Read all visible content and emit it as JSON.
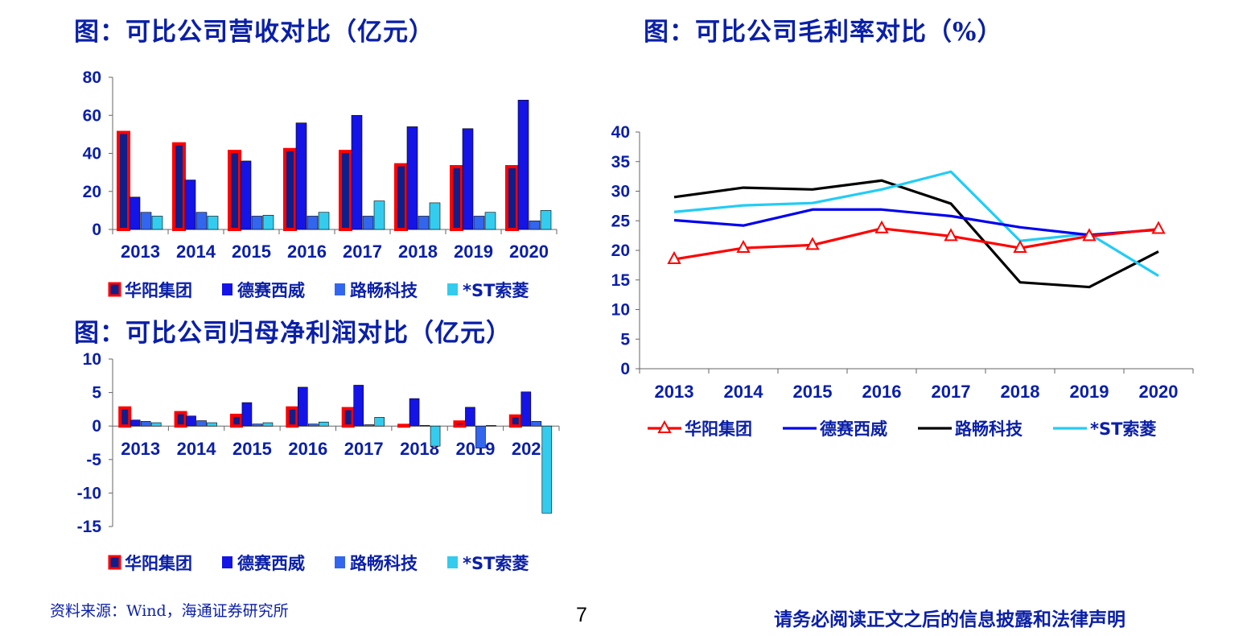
{
  "titles": {
    "revenue": "图：可比公司营收对比（亿元）",
    "gross_margin": "图：可比公司毛利率对比（%）",
    "net_profit": "图：可比公司归母净利润对比（亿元）"
  },
  "footer": {
    "source": "资料来源：Wind，海通证券研究所",
    "page_number": "7",
    "disclaimer": "请务必阅读正文之后的信息披露和法律声明"
  },
  "colors": {
    "text": "#0a1fa8",
    "huayang_fill": "#0f1f8a",
    "huayang_border": "#ff0000",
    "desai": "#1414e6",
    "luchang": "#3366ee",
    "st_suoling": "#33ccee",
    "line_huayang": "#ff0000",
    "line_desai": "#0000ee",
    "line_luchang": "#000000",
    "line_st": "#22ccf5"
  },
  "chart_data": [
    {
      "id": "revenue",
      "type": "bar",
      "categories": [
        "2013",
        "2014",
        "2015",
        "2016",
        "2017",
        "2018",
        "2019",
        "2020"
      ],
      "yticks": [
        "0",
        "20",
        "40",
        "60",
        "80"
      ],
      "ylim": [
        0,
        80
      ],
      "legend_position": "bottom",
      "series": [
        {
          "name": "华阳集团",
          "values": [
            51,
            45,
            41,
            42,
            41,
            34,
            33,
            33
          ]
        },
        {
          "name": "德赛西威",
          "values": [
            17,
            26,
            36,
            56,
            60,
            54,
            53,
            68
          ]
        },
        {
          "name": "路畅科技",
          "values": [
            9,
            9,
            7,
            7,
            7,
            7,
            7,
            4.5
          ]
        },
        {
          "name": "*ST索菱",
          "values": [
            7,
            7,
            7.5,
            9,
            15,
            14,
            9,
            10
          ]
        }
      ]
    },
    {
      "id": "net_profit",
      "type": "bar",
      "categories": [
        "2013",
        "2014",
        "2015",
        "2016",
        "2017",
        "2018",
        "2019",
        "2020"
      ],
      "yticks": [
        "10",
        "5",
        "0",
        "-5",
        "-10",
        "-15"
      ],
      "ylim": [
        -15,
        10
      ],
      "legend_position": "bottom",
      "series": [
        {
          "name": "华阳集团",
          "values": [
            2.7,
            2.0,
            1.6,
            2.7,
            2.6,
            0.1,
            0.6,
            1.5
          ]
        },
        {
          "name": "德赛西威",
          "values": [
            0.9,
            1.5,
            3.5,
            5.8,
            6.1,
            4.1,
            2.8,
            5.1
          ]
        },
        {
          "name": "路畅科技",
          "values": [
            0.7,
            0.8,
            0.3,
            0.3,
            0.2,
            0.1,
            -3.3,
            0.7
          ]
        },
        {
          "name": "*ST索菱",
          "values": [
            0.5,
            0.5,
            0.5,
            0.6,
            1.3,
            -3.0,
            0.1,
            -13.0
          ]
        }
      ]
    },
    {
      "id": "gross_margin",
      "type": "line",
      "categories": [
        "2013",
        "2014",
        "2015",
        "2016",
        "2017",
        "2018",
        "2019",
        "2020"
      ],
      "yticks": [
        "0",
        "5",
        "10",
        "15",
        "20",
        "25",
        "30",
        "35",
        "40"
      ],
      "ylim": [
        0,
        40
      ],
      "legend_position": "bottom",
      "series": [
        {
          "name": "华阳集团",
          "values": [
            18.5,
            20.4,
            20.9,
            23.7,
            22.4,
            20.4,
            22.4,
            23.6
          ],
          "marker": "triangle"
        },
        {
          "name": "德赛西威",
          "values": [
            25.1,
            24.2,
            26.9,
            26.9,
            25.8,
            23.9,
            22.6,
            23.5
          ]
        },
        {
          "name": "路畅科技",
          "values": [
            29.0,
            30.6,
            30.3,
            31.8,
            27.9,
            14.6,
            13.8,
            19.8
          ]
        },
        {
          "name": "*ST索菱",
          "values": [
            26.5,
            27.6,
            28.0,
            30.3,
            33.3,
            21.6,
            22.8,
            15.7
          ]
        }
      ]
    }
  ]
}
